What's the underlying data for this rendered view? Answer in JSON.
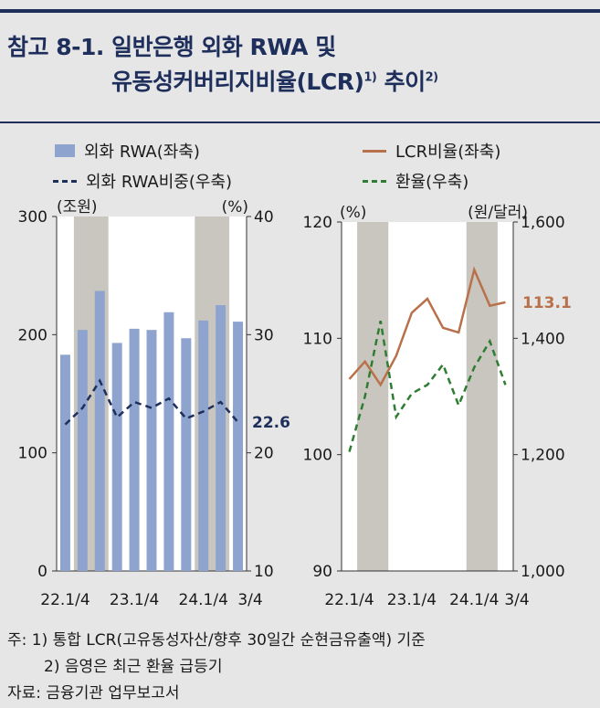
{
  "title": {
    "line1": "참고 8-1. 일반은행 외화 RWA 및",
    "line2": "유동성커버리지비율(LCR)",
    "line2_sup": "1)",
    "line2_tail": " 추이",
    "line2_sup2": "2)"
  },
  "legend": {
    "left_bar": "외화 RWA(좌축)",
    "left_line": "외화 RWA비중(우축)",
    "right_line1": "LCR비율(좌축)",
    "right_line2": "환율(우축)"
  },
  "colors": {
    "navy": "#1f2f5c",
    "bar": "#8ea4cf",
    "lcr": "#b8714a",
    "fx": "#2e7d32",
    "shade": "#c9c6bf"
  },
  "chart_data": [
    {
      "type": "bar",
      "left_unit": "(조원)",
      "right_unit": "(%)",
      "ylim": [
        0,
        300
      ],
      "y2lim": [
        10,
        40
      ],
      "yticks": [
        "0",
        "100",
        "200",
        "300"
      ],
      "y2ticks": [
        "10",
        "20",
        "30",
        "40"
      ],
      "xticks": [
        "22.1/4",
        "23.1/4",
        "24.1/4",
        "3/4"
      ],
      "quarters": [
        "22.1/4",
        "22.2/4",
        "22.3/4",
        "22.4/4",
        "23.1/4",
        "23.2/4",
        "23.3/4",
        "23.4/4",
        "24.1/4",
        "24.2/4",
        "24.3/4"
      ],
      "series": [
        {
          "name": "외화 RWA(좌축)",
          "values": [
            183,
            204,
            237,
            193,
            205,
            204,
            219,
            197,
            212,
            225,
            211
          ]
        },
        {
          "name": "외화 RWA비중(우축)",
          "values": [
            22.4,
            23.8,
            26.1,
            23.0,
            24.3,
            23.8,
            24.6,
            22.9,
            23.5,
            24.3,
            22.6
          ]
        }
      ],
      "shaded_ranges": [
        [
          1,
          2
        ],
        [
          8,
          9
        ]
      ],
      "end_label": "22.6"
    },
    {
      "type": "line",
      "left_unit": "(%)",
      "right_unit": "(원/달러)",
      "ylim": [
        90,
        120
      ],
      "y2lim": [
        1000,
        1600
      ],
      "yticks": [
        "90",
        "100",
        "110",
        "120"
      ],
      "y2ticks": [
        "1,000",
        "1,200",
        "1,400",
        "1,600"
      ],
      "xticks": [
        "22.1/4",
        "23.1/4",
        "24.1/4",
        "3/4"
      ],
      "series": [
        {
          "name": "LCR비율(좌축)",
          "values": [
            106.5,
            108,
            106,
            108.5,
            112.2,
            113.4,
            110.9,
            110.5,
            115.9,
            112.8,
            113.1
          ]
        },
        {
          "name": "환율(우축)",
          "values": [
            1205,
            1300,
            1430,
            1265,
            1305,
            1320,
            1355,
            1285,
            1350,
            1395,
            1320
          ]
        }
      ],
      "shaded_ranges": [
        [
          1,
          2
        ],
        [
          8,
          9
        ]
      ],
      "end_label": "113.1"
    }
  ],
  "notes": {
    "n1": "주:  1) 통합 LCR(고유동성자산/향후 30일간 순현금유출액) 기준",
    "n2": "2) 음영은 최근 환율 급등기",
    "n3": "자료: 금융기관 업무보고서"
  }
}
